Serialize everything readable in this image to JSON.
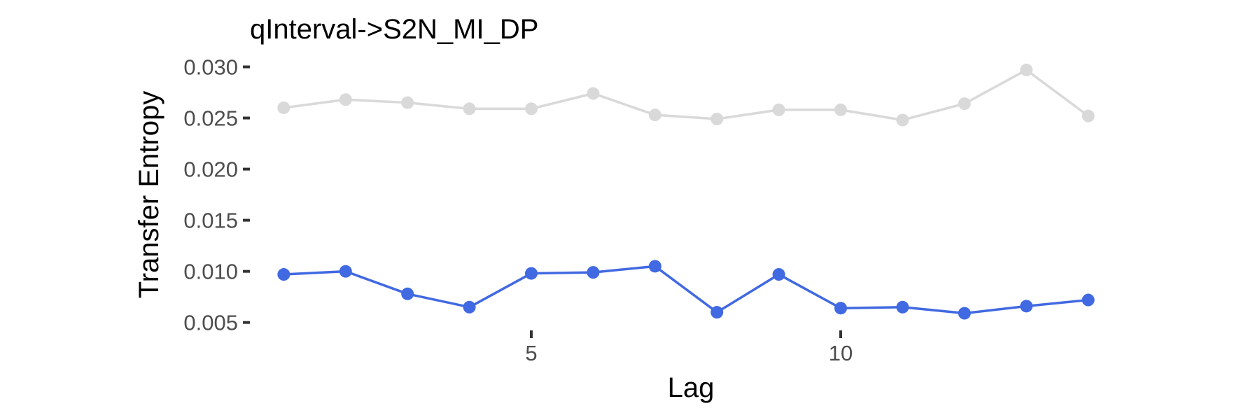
{
  "chart_data": {
    "type": "line",
    "title": "qInterval->S2N_MI_DP",
    "xlabel": "Lag",
    "ylabel": "Transfer Entropy",
    "x": [
      1,
      2,
      3,
      4,
      5,
      6,
      7,
      8,
      9,
      10,
      11,
      12,
      13,
      14
    ],
    "xlim": [
      0.6,
      14.4
    ],
    "ylim": [
      0.0045,
      0.0312
    ],
    "x_ticks": [
      5,
      10
    ],
    "x_tick_labels": [
      "5",
      "10"
    ],
    "y_ticks": [
      0.005,
      0.01,
      0.015,
      0.02,
      0.025,
      0.03
    ],
    "y_tick_labels": [
      "0.005",
      "0.010",
      "0.015",
      "0.020",
      "0.025",
      "0.030"
    ],
    "grid": false,
    "legend": "none",
    "series": [
      {
        "color": "#d9d9d9",
        "values": [
          0.026,
          0.0268,
          0.0265,
          0.0259,
          0.0259,
          0.0274,
          0.0253,
          0.0249,
          0.0258,
          0.0258,
          0.0248,
          0.0264,
          0.0297,
          0.0252
        ]
      },
      {
        "color": "#4169e1",
        "values": [
          0.0097,
          0.01,
          0.0078,
          0.0065,
          0.0098,
          0.0099,
          0.0105,
          0.006,
          0.0097,
          0.0064,
          0.0065,
          0.0059,
          0.0066,
          0.0072
        ]
      }
    ]
  }
}
